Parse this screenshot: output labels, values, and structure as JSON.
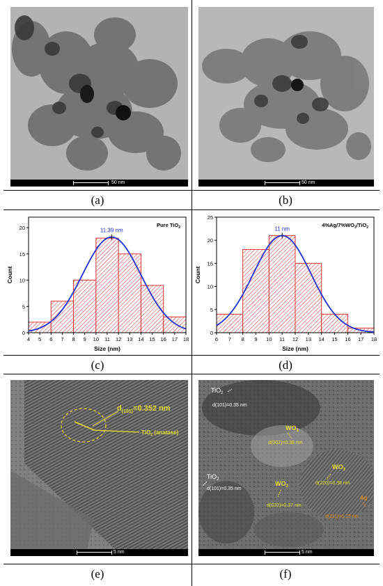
{
  "panels": {
    "a": {
      "caption": "(a)",
      "scale_label": "50 nm"
    },
    "b": {
      "caption": "(b)",
      "scale_label": "50 nm"
    },
    "c": {
      "caption": "(c)"
    },
    "d": {
      "caption": "(d)"
    },
    "e": {
      "caption": "(e)",
      "scale_label": "5 nm",
      "annotations": {
        "d_spacing_prefix": "d",
        "d_spacing_sub": "(101)",
        "d_spacing_value": "=0.352 nm",
        "phase_label": "TiO",
        "phase_sub": "2",
        "phase_suffix": " (anatase)"
      }
    },
    "f": {
      "caption": "(f)",
      "scale_label": "5 nm",
      "annotations": {
        "tio2_top": "TiO",
        "tio2_top_sub": "2",
        "d101_top": "d(101)=0.35 nm",
        "wo3_a": "WO",
        "wo3_a_sub": "3",
        "d002": "d(002)=0.38 nm",
        "wo3_b": "WO",
        "wo3_b_sub": "3",
        "d220": "d(220)=0.38 nm",
        "tio2_bottom": "TiO",
        "tio2_bottom_sub": "2",
        "d101_bottom": "d(101)=0.35 nm",
        "wo3_c": "WO",
        "wo3_c_sub": "3",
        "d020": "d(020)=0.37 nm",
        "ag_label": "Ag",
        "d111": "d(111)=0.23 nm"
      }
    }
  },
  "chart_data": [
    {
      "type": "bar",
      "title": "Pure TiO",
      "title_sub": "2",
      "xlabel": "Size (nm)",
      "ylabel": "Count",
      "bin_edges": [
        4,
        6,
        8,
        10,
        12,
        14,
        16,
        18
      ],
      "values": [
        2,
        6,
        10,
        18,
        15,
        9,
        3
      ],
      "xlim": [
        4,
        18
      ],
      "ylim": [
        0,
        22
      ],
      "xticks": [
        4,
        5,
        6,
        7,
        8,
        9,
        10,
        11,
        12,
        13,
        14,
        15,
        16,
        17,
        18
      ],
      "yticks": [
        0,
        5,
        10,
        15,
        20
      ],
      "fit": {
        "type": "gaussian",
        "mean": 11.39,
        "peak": 18.2,
        "sigma": 2.6
      },
      "peak_label": "11.39 nm",
      "bar_color": "#e03030",
      "fit_color": "#1a2fd6"
    },
    {
      "type": "bar",
      "title": "4%Ag/7%WO",
      "title_sub": "3",
      "title_suffix": "/TiO",
      "title_suffix_sub": "2",
      "xlabel": "Size (nm)",
      "ylabel": "Count",
      "bin_edges": [
        6,
        8,
        10,
        12,
        14,
        16,
        18
      ],
      "values": [
        4,
        18,
        21,
        15,
        4,
        1
      ],
      "xlim": [
        6,
        18
      ],
      "ylim": [
        0,
        25
      ],
      "xticks": [
        6,
        7,
        8,
        9,
        10,
        11,
        12,
        13,
        14,
        15,
        16,
        17,
        18
      ],
      "yticks": [
        0,
        5,
        10,
        15,
        20,
        25
      ],
      "fit": {
        "type": "gaussian",
        "mean": 11.0,
        "peak": 21,
        "sigma": 2.2
      },
      "peak_label": "11 nm",
      "bar_color": "#e03030",
      "fit_color": "#1a2fd6"
    }
  ]
}
